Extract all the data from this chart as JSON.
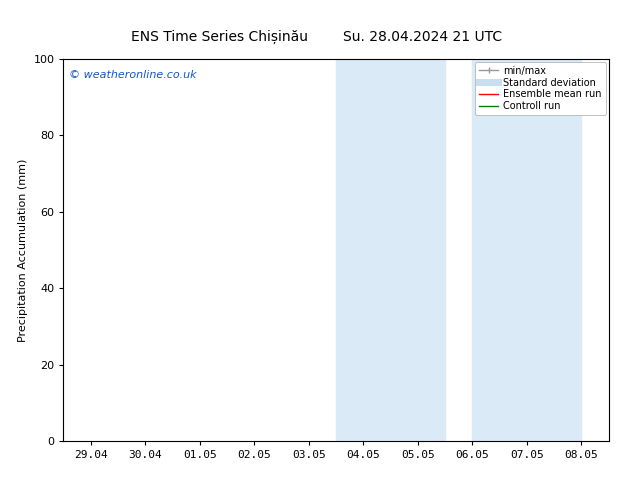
{
  "title_left": "ENS Time Series Chișinău",
  "title_right": "Su. 28.04.2024 21 UTC",
  "ylabel": "Precipitation Accumulation (mm)",
  "ylim": [
    0,
    100
  ],
  "yticks": [
    0,
    20,
    40,
    60,
    80,
    100
  ],
  "x_labels": [
    "29.04",
    "30.04",
    "01.05",
    "02.05",
    "03.05",
    "04.05",
    "05.05",
    "06.05",
    "07.05",
    "08.05"
  ],
  "shaded_regions": [
    {
      "x_start": 5.0,
      "x_end": 7.0
    },
    {
      "x_start": 7.5,
      "x_end": 9.5
    }
  ],
  "shade_color": "#daeaf7",
  "watermark_text": "© weatheronline.co.uk",
  "watermark_color": "#1155cc",
  "legend_items": [
    {
      "label": "min/max",
      "color": "#999999",
      "lw": 1.0,
      "style": "line_with_caps"
    },
    {
      "label": "Standard deviation",
      "color": "#c8dff0",
      "lw": 5,
      "style": "line"
    },
    {
      "label": "Ensemble mean run",
      "color": "red",
      "lw": 1.0,
      "style": "line"
    },
    {
      "label": "Controll run",
      "color": "green",
      "lw": 1.0,
      "style": "line"
    }
  ],
  "bg_color": "#ffffff",
  "font_size": 8,
  "title_font_size": 10,
  "xlim": [
    -0.5,
    9.5
  ]
}
